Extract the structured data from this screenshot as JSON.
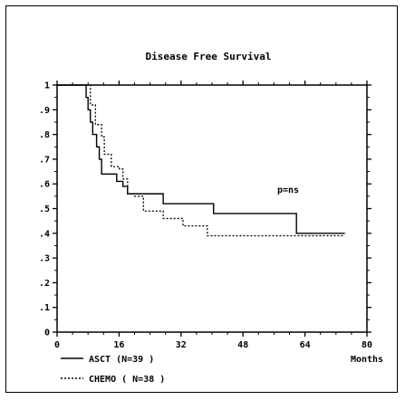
{
  "chart_data": {
    "type": "line",
    "title": "Disease Free Survival",
    "xlabel": "Months",
    "ylabel": "",
    "xlim": [
      0,
      80
    ],
    "ylim": [
      0,
      1
    ],
    "x_ticks": [
      "0",
      "16",
      "32",
      "48",
      "64",
      "80"
    ],
    "y_ticks": [
      "0",
      ".1",
      ".2",
      ".3",
      ".4",
      ".5",
      ".6",
      ".7",
      ".8",
      ".9",
      "1"
    ],
    "annotation": "p=ns",
    "legend_placement": "bottom-left",
    "grid": false,
    "series": [
      {
        "name": "ASCT (N=39 )",
        "style": "solid",
        "color": "#000000",
        "x": [
          0,
          7,
          7.5,
          8,
          8.6,
          9.2,
          10.2,
          10.9,
          11.5,
          12.2,
          15.4,
          17,
          18.2,
          19.8,
          21.7,
          27.4,
          40.4,
          61.8,
          74.3
        ],
        "y": [
          1,
          1,
          0.95,
          0.9,
          0.85,
          0.8,
          0.75,
          0.7,
          0.64,
          0.64,
          0.61,
          0.59,
          0.56,
          0.56,
          0.56,
          0.52,
          0.48,
          0.4,
          0.4
        ]
      },
      {
        "name": "CHEMO ( N=38 )",
        "style": "dotted",
        "color": "#000000",
        "x": [
          0,
          7.5,
          8.6,
          9.9,
          11.5,
          12.2,
          14,
          16.1,
          17,
          18.2,
          20,
          22.3,
          27.4,
          32.5,
          38.8,
          74.3
        ],
        "y": [
          1,
          1,
          0.92,
          0.84,
          0.79,
          0.72,
          0.67,
          0.66,
          0.62,
          0.56,
          0.55,
          0.49,
          0.46,
          0.43,
          0.39,
          0.39
        ]
      }
    ]
  }
}
